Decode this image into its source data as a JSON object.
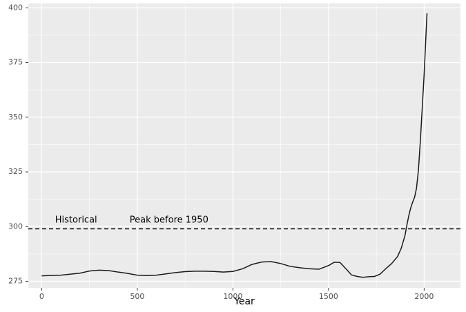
{
  "chart_data": {
    "type": "line",
    "title": "",
    "xlabel": "Year",
    "ylabel": "",
    "xlim": [
      -70,
      2190
    ],
    "ylim": [
      272,
      402
    ],
    "x_ticks": [
      0,
      500,
      1000,
      1500,
      2000
    ],
    "y_ticks": [
      275,
      300,
      325,
      350,
      375,
      400
    ],
    "x_tick_labels": [
      "0",
      "500",
      "1000",
      "1500",
      "2000"
    ],
    "y_tick_labels": [
      "275",
      "300",
      "325",
      "350",
      "375",
      "400"
    ],
    "grid": true,
    "background_color": "#ebebeb",
    "line_color": "#1a1a1a",
    "reference_line": {
      "y": 299,
      "style": "dashed",
      "color": "#1a1a1a"
    },
    "annotations": [
      {
        "text": "Historical",
        "x": 70,
        "y": 303
      },
      {
        "text": "Peak before 1950",
        "x": 460,
        "y": 303
      }
    ],
    "series": [
      {
        "x": [
          0,
          100,
          200,
          250,
          300,
          350,
          400,
          450,
          500,
          550,
          600,
          650,
          700,
          750,
          800,
          850,
          900,
          950,
          1000,
          1050,
          1100,
          1150,
          1200,
          1250,
          1300,
          1350,
          1400,
          1450,
          1500,
          1530,
          1560,
          1590,
          1620,
          1650,
          1680,
          1710,
          1740,
          1770,
          1800,
          1830,
          1860,
          1880,
          1900,
          1910,
          1920,
          1930,
          1940,
          1950,
          1960,
          1970,
          1980,
          1990,
          2000,
          2010,
          2015
        ],
        "values": [
          277.5,
          277.8,
          278.7,
          279.7,
          280.1,
          279.9,
          279.2,
          278.6,
          277.8,
          277.6,
          277.8,
          278.4,
          279.0,
          279.4,
          279.6,
          279.6,
          279.5,
          279.2,
          279.5,
          280.7,
          282.7,
          283.8,
          284.0,
          283.1,
          281.8,
          281.2,
          280.7,
          280.5,
          282.2,
          283.7,
          283.6,
          280.8,
          277.9,
          277.2,
          276.8,
          277.1,
          277.2,
          278.3,
          280.8,
          283.1,
          286.2,
          290.0,
          296.0,
          300.8,
          305.1,
          308.6,
          311.2,
          313.4,
          317.5,
          325.7,
          338.9,
          354.2,
          369.6,
          388.4,
          397.5
        ]
      }
    ]
  }
}
